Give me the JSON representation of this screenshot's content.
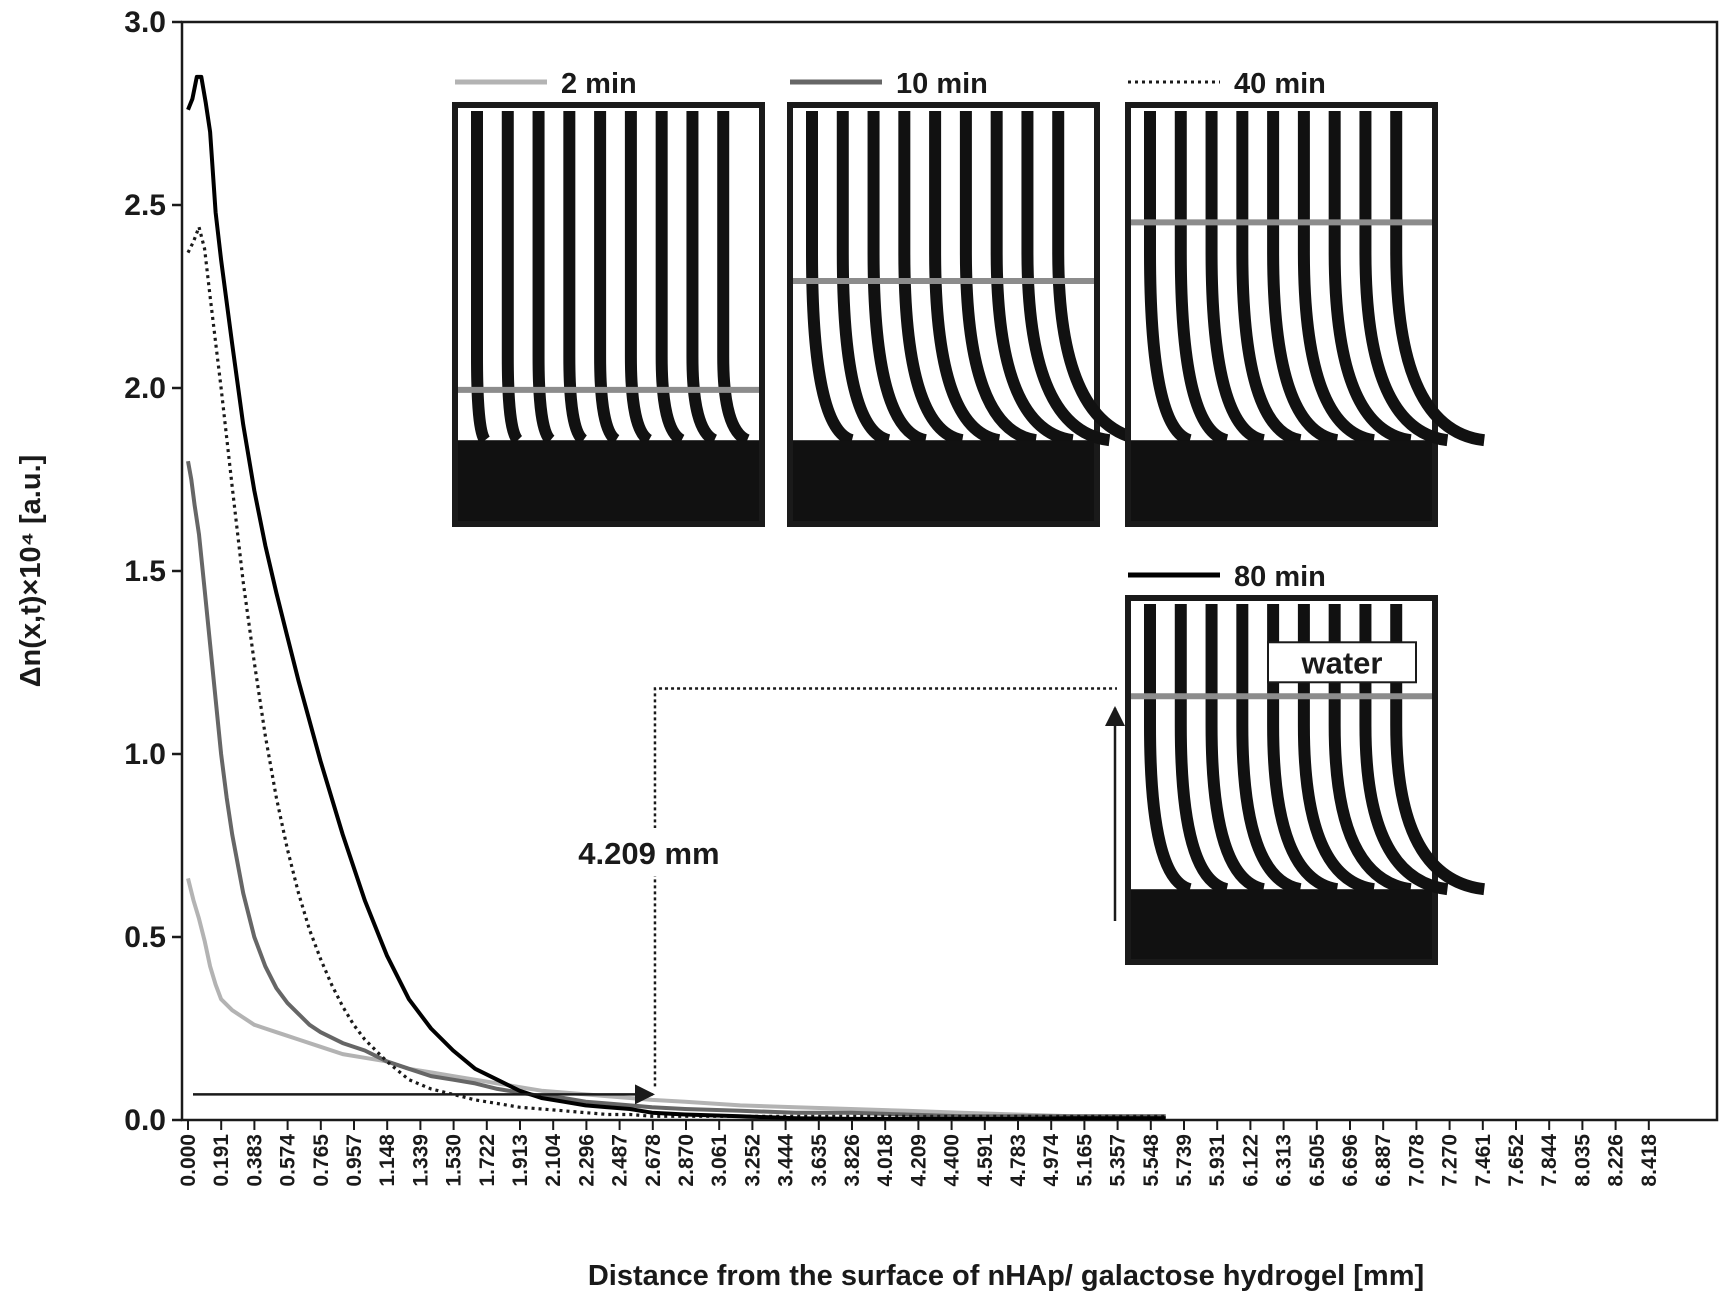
{
  "chart_data": {
    "type": "line",
    "xlabel": "Distance from the surface of nHAp/ galactose hydrogel [mm]",
    "ylabel": "Δn(x,t)×10⁴ [a.u.]",
    "ylim": [
      0,
      3.0
    ],
    "xlim": [
      0,
      8.85
    ],
    "yticks": [
      "0.0",
      "0.5",
      "1.0",
      "1.5",
      "2.0",
      "2.5",
      "3.0"
    ],
    "xticks": [
      "0.000",
      "0.191",
      "0.383",
      "0.574",
      "0.765",
      "0.957",
      "1.148",
      "1.339",
      "1.530",
      "1.722",
      "1.913",
      "2.104",
      "2.296",
      "2.487",
      "2.678",
      "2.870",
      "3.061",
      "3.252",
      "3.444",
      "3.635",
      "3.826",
      "4.018",
      "4.209",
      "4.400",
      "4.591",
      "4.783",
      "4.974",
      "5.165",
      "5.357",
      "5.548",
      "5.739",
      "5.931",
      "6.122",
      "6.313",
      "6.505",
      "6.696",
      "6.887",
      "7.078",
      "7.270",
      "7.461",
      "7.652",
      "7.844",
      "8.035",
      "8.226",
      "8.418"
    ],
    "grid": false,
    "legend": "inset-images",
    "series": [
      {
        "name": "2 min",
        "color": "#b3b3b3",
        "style": "solid",
        "x": [
          0,
          0.05,
          0.1,
          0.15,
          0.2,
          0.25,
          0.3,
          0.4,
          0.5,
          0.6,
          0.7,
          0.8,
          0.9,
          1.0,
          1.2,
          1.4,
          1.6,
          1.8,
          2.0,
          2.2,
          2.4,
          2.6,
          2.8,
          3.0,
          3.2,
          3.4,
          3.6,
          3.8,
          4.0,
          4.2,
          4.5,
          5.0,
          5.5,
          6.0,
          6.5,
          7.0,
          7.5,
          8.0,
          8.5,
          8.85
        ],
        "y": [
          0.66,
          0.6,
          0.55,
          0.49,
          0.42,
          0.37,
          0.33,
          0.3,
          0.28,
          0.26,
          0.25,
          0.24,
          0.23,
          0.22,
          0.2,
          0.18,
          0.17,
          0.16,
          0.14,
          0.13,
          0.12,
          0.11,
          0.1,
          0.09,
          0.08,
          0.075,
          0.07,
          0.065,
          0.06,
          0.055,
          0.05,
          0.04,
          0.035,
          0.03,
          0.025,
          0.02,
          0.015,
          0.01,
          0.01,
          0.01
        ]
      },
      {
        "name": "10 min",
        "color": "#666666",
        "style": "solid",
        "x": [
          0,
          0.03,
          0.06,
          0.1,
          0.15,
          0.2,
          0.25,
          0.3,
          0.35,
          0.4,
          0.5,
          0.6,
          0.7,
          0.8,
          0.9,
          1.0,
          1.1,
          1.2,
          1.4,
          1.6,
          1.8,
          2.0,
          2.2,
          2.4,
          2.6,
          2.8,
          3.0,
          3.2,
          3.4,
          3.6,
          3.8,
          4.0,
          4.2,
          4.5,
          5.0,
          5.5,
          6.0,
          6.5,
          7.0,
          7.5,
          8.0,
          8.5,
          8.85
        ],
        "y": [
          1.8,
          1.75,
          1.68,
          1.6,
          1.45,
          1.3,
          1.15,
          1.0,
          0.88,
          0.78,
          0.62,
          0.5,
          0.42,
          0.36,
          0.32,
          0.29,
          0.26,
          0.24,
          0.21,
          0.19,
          0.16,
          0.14,
          0.12,
          0.11,
          0.1,
          0.085,
          0.075,
          0.065,
          0.06,
          0.05,
          0.045,
          0.04,
          0.035,
          0.03,
          0.025,
          0.02,
          0.02,
          0.015,
          0.01,
          0.01,
          0.01,
          0.01,
          0.01
        ]
      },
      {
        "name": "40 min",
        "color": "#1a1a1a",
        "style": "dotted",
        "x": [
          0,
          0.05,
          0.1,
          0.15,
          0.2,
          0.3,
          0.4,
          0.5,
          0.6,
          0.7,
          0.8,
          0.9,
          1.0,
          1.1,
          1.2,
          1.3,
          1.4,
          1.5,
          1.6,
          1.8,
          2.0,
          2.2,
          2.4,
          2.6,
          2.8,
          3.0,
          3.2,
          3.4,
          3.6,
          3.8,
          4.0,
          4.2,
          4.5,
          5.0,
          5.5,
          6.0,
          7.0,
          8.0,
          8.85
        ],
        "y": [
          2.37,
          2.4,
          2.44,
          2.38,
          2.25,
          2.0,
          1.73,
          1.47,
          1.25,
          1.05,
          0.88,
          0.74,
          0.62,
          0.52,
          0.44,
          0.37,
          0.31,
          0.26,
          0.22,
          0.16,
          0.11,
          0.085,
          0.07,
          0.055,
          0.045,
          0.035,
          0.03,
          0.025,
          0.02,
          0.015,
          0.015,
          0.01,
          0.01,
          0.01,
          0.01,
          0.01,
          0.01,
          0.01,
          0.01
        ]
      },
      {
        "name": "80 min",
        "color": "#000000",
        "style": "solid",
        "x": [
          0,
          0.04,
          0.08,
          0.12,
          0.16,
          0.2,
          0.25,
          0.3,
          0.4,
          0.5,
          0.6,
          0.7,
          0.8,
          0.9,
          1.0,
          1.2,
          1.4,
          1.6,
          1.8,
          2.0,
          2.2,
          2.4,
          2.6,
          2.8,
          3.0,
          3.2,
          3.4,
          3.6,
          3.8,
          4.0,
          4.2,
          4.5,
          5.0,
          5.5,
          6.0,
          6.5,
          7.0,
          7.5,
          8.0,
          8.5,
          8.85
        ],
        "y": [
          2.76,
          2.79,
          2.85,
          2.85,
          2.78,
          2.7,
          2.48,
          2.35,
          2.12,
          1.9,
          1.72,
          1.57,
          1.44,
          1.32,
          1.2,
          0.98,
          0.78,
          0.6,
          0.45,
          0.33,
          0.25,
          0.19,
          0.14,
          0.11,
          0.08,
          0.06,
          0.05,
          0.04,
          0.035,
          0.03,
          0.02,
          0.015,
          0.01,
          0.005,
          0.003,
          0.003,
          0.003,
          0.003,
          0.005,
          0.005,
          0.005
        ]
      }
    ],
    "annotations": [
      {
        "text": "4.209 mm",
        "x": 4.209,
        "y_baseline": 0.07,
        "y_top": 1.19
      }
    ],
    "insets": [
      {
        "label": "2 min",
        "line_style": "solid",
        "line_color": "#b3b3b3",
        "marker_fraction": 0.68
      },
      {
        "label": "10 min",
        "line_style": "solid",
        "line_color": "#666666",
        "marker_fraction": 0.42
      },
      {
        "label": "40 min",
        "line_style": "dotted",
        "line_color": "#1a1a1a",
        "marker_fraction": 0.28
      },
      {
        "label": "80 min",
        "line_style": "solid",
        "line_color": "#000000",
        "marker_fraction": 0.27,
        "tag": "water"
      }
    ]
  }
}
